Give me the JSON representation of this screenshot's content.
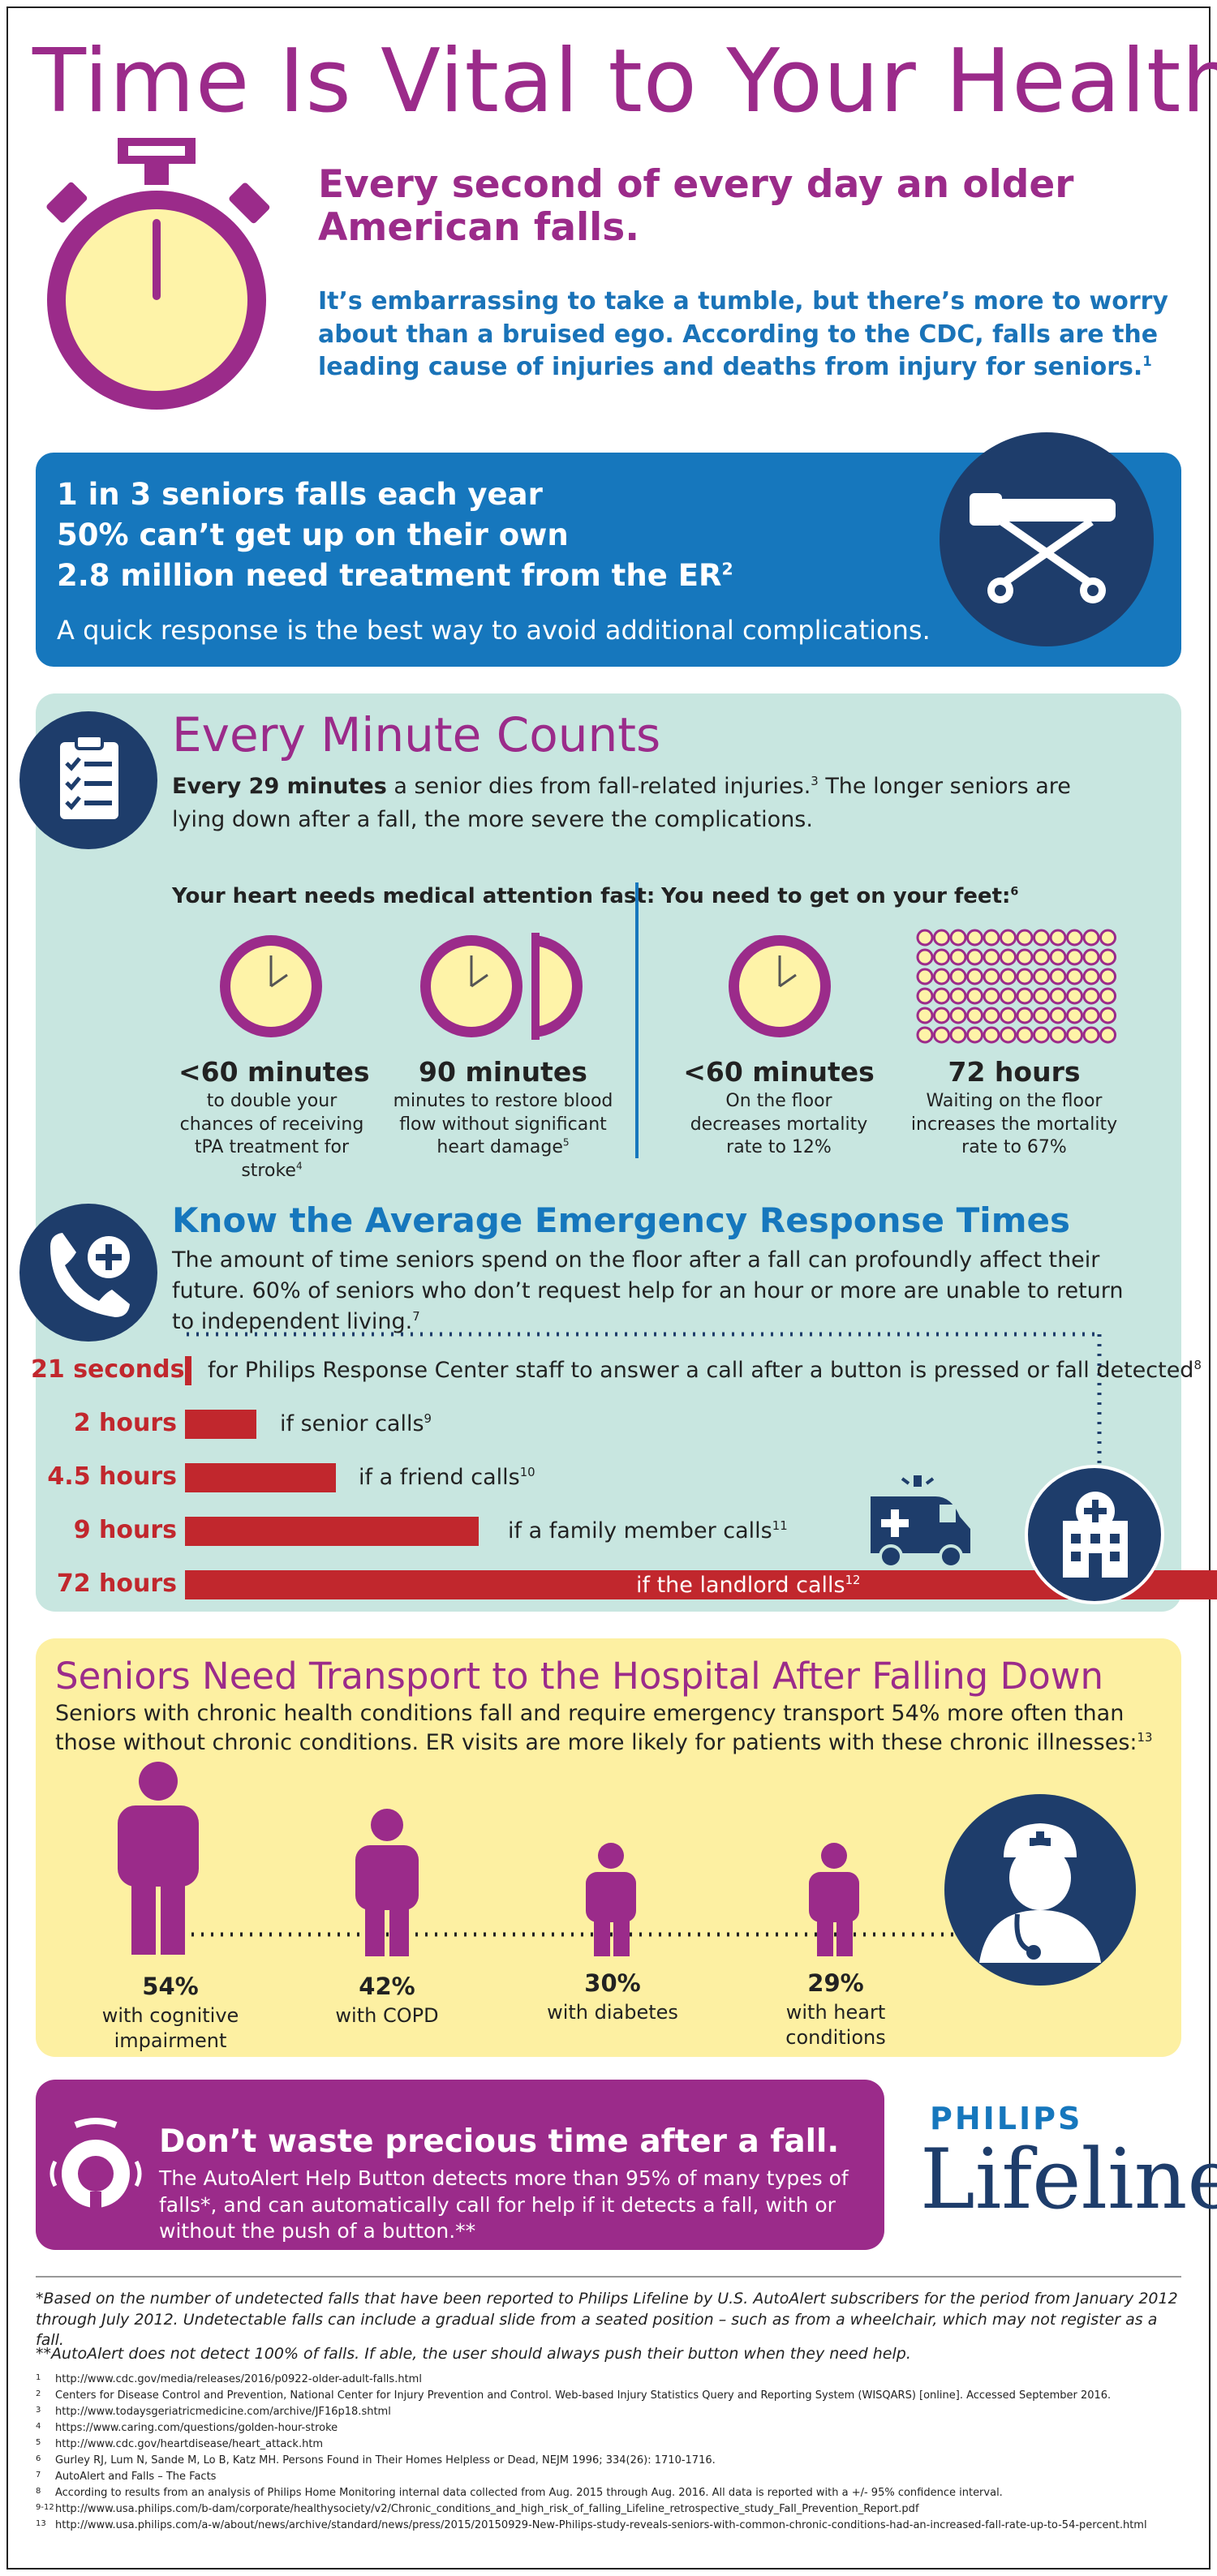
{
  "header": {
    "title": "Time Is Vital to Your Health",
    "headline": "Every second of every day an older American falls.",
    "intro": "It’s embarrassing to take a tumble, but there’s more to worry about than a bruised ego. According to the CDC, falls are the leading cause of injuries and deaths from injury for seniors.",
    "intro_sup": "1"
  },
  "stats": {
    "line1": "1 in 3 seniors falls each year",
    "line2": "50% can’t get up on their own",
    "line3": "2.8 million need treatment from the ER",
    "line3_sup": "2",
    "note": "A quick response is the best way to avoid additional complications."
  },
  "every_minute": {
    "title": "Every Minute Counts",
    "lead_bold": "Every 29 minutes",
    "lead_rest": " a senior dies from fall-related injuries.",
    "lead_sup": "3",
    "lead_tail": " The longer seniors are lying down after a fall, the more severe the complications.",
    "col1_heading": "Your heart needs medical attention fast:",
    "col2_heading": "You need to get on your feet:",
    "col2_sup": "6",
    "items": [
      {
        "value": "<60 minutes",
        "text": "to double your chances of receiving tPA treatment for stroke",
        "sup": "4"
      },
      {
        "value": "90 minutes",
        "text": "minutes to restore blood flow without significant heart damage",
        "sup": "5"
      },
      {
        "value": "<60 minutes",
        "text": "On the floor decreases mortality rate to 12%",
        "sup": ""
      },
      {
        "value": "72 hours",
        "text": "Waiting on the floor increases the mortality rate to 67%",
        "sup": ""
      }
    ]
  },
  "response_times": {
    "title": "Know the Average Emergency Response Times",
    "body": "The amount of time seniors spend on the floor after a fall can profoundly affect their future. 60% of seniors who don’t request help for an hour or more are unable to return to independent living.",
    "body_sup": "7",
    "rows": [
      {
        "label": "21 seconds",
        "text": "for Philips Response Center staff to answer a call after a button is pressed or fall detected",
        "sup": "8"
      },
      {
        "label": "2 hours",
        "text": "if senior calls",
        "sup": "9"
      },
      {
        "label": "4.5 hours",
        "text": "if a friend calls",
        "sup": "10"
      },
      {
        "label": "9 hours",
        "text": "if a family member calls",
        "sup": "11"
      },
      {
        "label": "72 hours",
        "text": "if the landlord calls",
        "sup": "12"
      }
    ]
  },
  "transport": {
    "title": "Seniors Need Transport to the Hospital After Falling Down",
    "body": "Seniors with chronic health conditions fall and require emergency transport 54% more often than those without chronic conditions. ER visits are more likely for patients with these chronic illnesses:",
    "body_sup": "13",
    "items": [
      {
        "pct": "54%",
        "label": "with cognitive impairment"
      },
      {
        "pct": "42%",
        "label": "with COPD"
      },
      {
        "pct": "30%",
        "label": "with diabetes"
      },
      {
        "pct": "29%",
        "label": "with heart conditions"
      }
    ]
  },
  "cta": {
    "title": "Don’t waste precious time after a fall.",
    "body": "The AutoAlert Help Button detects more than 95% of many types of falls*, and can automatically call for help if it detects a fall, with or without the push of a button.**"
  },
  "brand": {
    "top": "PHILIPS",
    "bottom": "Lifeline"
  },
  "footnotes": {
    "note1": "*Based on the number of undetected falls that have been reported to Philips Lifeline by U.S. AutoAlert subscribers for the period from January 2012 through July 2012. Undetectable falls can include a gradual slide from a seated position – such as from a wheelchair, which may not register as a fall.",
    "note2": "**AutoAlert does not detect 100% of falls. If able, the user should always push their button when they need help."
  },
  "references": [
    {
      "n": "1",
      "text": "http://www.cdc.gov/media/releases/2016/p0922-older-adult-falls.html"
    },
    {
      "n": "2",
      "text": "Centers for Disease Control and Prevention, National Center for Injury Prevention and Control. Web-based Injury Statistics Query and Reporting System (WISQARS) [online]. Accessed September 2016."
    },
    {
      "n": "3",
      "text": "http://www.todaysgeriatricmedicine.com/archive/JF16p18.shtml"
    },
    {
      "n": "4",
      "text": "https://www.caring.com/questions/golden-hour-stroke"
    },
    {
      "n": "5",
      "text": "http://www.cdc.gov/heartdisease/heart_attack.htm"
    },
    {
      "n": "6",
      "text": "Gurley RJ, Lum N, Sande M, Lo B, Katz MH. Persons Found in Their Homes Helpless or Dead, NEJM 1996; 334(26): 1710-1716."
    },
    {
      "n": "7",
      "text": "AutoAlert and Falls – The Facts"
    },
    {
      "n": "8",
      "text": "According to results from an analysis of Philips Home Monitoring internal data collected from Aug. 2015 through Aug. 2016. All data is reported with a +/- 95% confidence interval."
    },
    {
      "n": "9-12",
      "text": "http://www.usa.philips.com/b-dam/corporate/healthysociety/v2/Chronic_conditions_and_high_risk_of_falling_Lifeline_retrospective_study_Fall_Prevention_Report.pdf"
    },
    {
      "n": "13",
      "text": "http://www.usa.philips.com/a-w/about/news/archive/standard/news/press/2015/20150929-New-Philips-study-reveals-seniors-with-common-chronic-conditions-had-an-increased-fall-rate-up-to-54-percent.html"
    }
  ]
}
